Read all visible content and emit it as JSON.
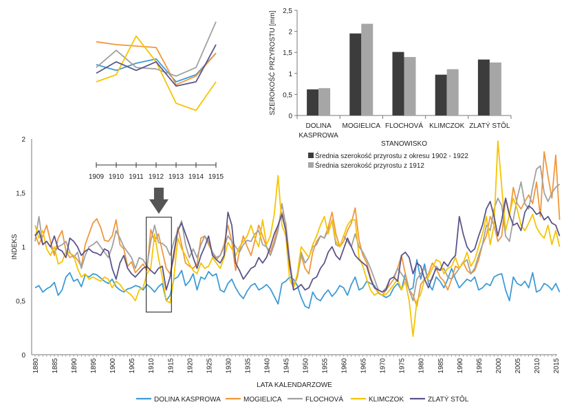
{
  "colors": {
    "dolina": "#3d9ad6",
    "mogielica": "#f0973a",
    "flochova": "#a0a0a0",
    "klimczok": "#f5c400",
    "zlaty": "#5a5488",
    "bar_dark": "#3c3c3c",
    "bar_light": "#a6a6a6",
    "arrow": "#555555"
  },
  "chart_data": [
    {
      "id": "main",
      "type": "line",
      "xlabel": "LATA KALENDARZOWE",
      "ylabel": "INDEKS",
      "xlim": [
        1880,
        2015
      ],
      "ylim": [
        0,
        2
      ],
      "yticks": [
        0,
        0.5,
        1,
        1.5,
        2
      ],
      "ytick_labels": [
        "0",
        "0,5",
        "1",
        "1,5",
        "2"
      ],
      "xticks": [
        1880,
        1885,
        1890,
        1895,
        1900,
        1905,
        1910,
        1915,
        1920,
        1925,
        1930,
        1935,
        1940,
        1945,
        1950,
        1955,
        1960,
        1965,
        1970,
        1975,
        1980,
        1985,
        1990,
        1995,
        2000,
        2005,
        2010,
        2015
      ],
      "highlight_range": [
        1909,
        1915
      ],
      "series": [
        {
          "name": "DOLINA KASPROWA",
          "color_key": "dolina",
          "x_start": 1880,
          "values": [
            0.62,
            0.64,
            0.58,
            0.61,
            0.63,
            0.67,
            0.55,
            0.6,
            0.72,
            0.76,
            0.68,
            0.7,
            0.63,
            0.74,
            0.72,
            0.75,
            0.74,
            0.71,
            0.68,
            0.66,
            0.7,
            0.63,
            0.6,
            0.58,
            0.61,
            0.62,
            0.64,
            0.63,
            0.6,
            0.65,
            0.62,
            0.58,
            0.63,
            0.66,
            0.5,
            0.55,
            0.7,
            0.72,
            0.78,
            0.64,
            0.68,
            0.75,
            0.6,
            0.72,
            0.7,
            0.77,
            0.73,
            0.75,
            0.6,
            0.58,
            0.66,
            0.7,
            0.62,
            0.56,
            0.52,
            0.59,
            0.64,
            0.66,
            0.6,
            0.62,
            0.65,
            0.61,
            0.54,
            0.47,
            0.66,
            0.68,
            0.72,
            0.7,
            0.64,
            0.53,
            0.45,
            0.43,
            0.58,
            0.52,
            0.5,
            0.56,
            0.6,
            0.54,
            0.58,
            0.64,
            0.62,
            0.55,
            0.65,
            0.72,
            0.6,
            0.62,
            0.68,
            0.66,
            0.64,
            0.57,
            0.55,
            0.53,
            0.55,
            0.62,
            0.66,
            0.6,
            0.75,
            0.6,
            0.62,
            0.88,
            0.7,
            0.84,
            0.66,
            0.6,
            0.72,
            0.68,
            0.62,
            0.7,
            0.8,
            0.7,
            0.62,
            0.66,
            0.7,
            0.68,
            0.72,
            0.6,
            0.62,
            0.66,
            0.64,
            0.72,
            0.74,
            0.75,
            0.6,
            0.5,
            0.72,
            0.66,
            0.64,
            0.68,
            0.62,
            0.76,
            0.58,
            0.6,
            0.66,
            0.64,
            0.6,
            0.66,
            0.58
          ]
        },
        {
          "name": "MOGIELICA",
          "color_key": "mogielica",
          "x_start": 1880,
          "values": [
            1.12,
            1.02,
            1.1,
            1.2,
            1.05,
            0.92,
            1.08,
            1.15,
            0.96,
            0.9,
            0.92,
            0.88,
            0.82,
            1.02,
            1.12,
            1.22,
            1.26,
            1.18,
            1.06,
            1.05,
            1.1,
            1.25,
            1.02,
            0.98,
            0.82,
            0.86,
            0.76,
            0.8,
            0.84,
            0.78,
            1.16,
            1.05,
            1.12,
            0.96,
            0.8,
            0.75,
            0.9,
            1.18,
            1.02,
            0.85,
            0.82,
            0.8,
            0.84,
            1.08,
            1.1,
            1.02,
            0.95,
            0.88,
            0.92,
            1.02,
            1.2,
            1.05,
            0.78,
            0.96,
            1.1,
            1.0,
            0.92,
            1.06,
            1.2,
            1.1,
            1.0,
            0.95,
            1.06,
            1.2,
            1.32,
            1.22,
            0.88,
            0.62,
            0.72,
            0.92,
            0.8,
            0.75,
            0.95,
            1.05,
            1.1,
            1.08,
            1.18,
            1.32,
            1.12,
            1.0,
            1.05,
            1.15,
            1.22,
            1.36,
            1.06,
            0.92,
            0.85,
            0.72,
            0.62,
            0.58,
            0.55,
            0.6,
            0.65,
            0.7,
            0.8,
            0.92,
            0.75,
            0.6,
            0.55,
            0.45,
            0.65,
            0.7,
            0.75,
            0.85,
            0.8,
            0.72,
            0.68,
            0.6,
            0.7,
            0.82,
            0.8,
            0.86,
            0.78,
            0.75,
            0.78,
            0.88,
            1.02,
            1.1,
            1.28,
            1.2,
            1.05,
            1.1,
            1.45,
            1.28,
            1.55,
            1.4,
            1.35,
            1.42,
            1.48,
            1.4,
            1.6,
            1.28,
            1.88,
            1.65,
            1.45,
            1.85,
            1.25
          ]
        },
        {
          "name": "FLOCHOVÁ",
          "color_key": "flochova",
          "x_start": 1880,
          "values": [
            1.05,
            1.28,
            1.02,
            1.05,
            1.0,
            0.95,
            1.0,
            1.02,
            1.05,
            0.95,
            0.9,
            0.95,
            0.8,
            0.92,
            1.0,
            1.02,
            1.05,
            1.0,
            0.95,
            0.9,
            1.0,
            1.15,
            1.08,
            1.0,
            0.95,
            0.9,
            0.8,
            0.9,
            0.88,
            0.82,
            1.05,
            1.2,
            1.04,
            1.03,
            1.0,
            0.92,
            1.05,
            1.15,
            1.24,
            1.02,
            0.9,
            0.98,
            0.9,
            1.02,
            1.1,
            1.05,
            0.95,
            0.9,
            0.92,
            1.0,
            1.1,
            1.05,
            1.0,
            0.95,
            1.02,
            1.06,
            1.05,
            1.12,
            1.15,
            1.02,
            1.0,
            0.92,
            1.02,
            1.15,
            1.4,
            1.2,
            0.82,
            0.65,
            0.72,
            0.95,
            0.85,
            0.9,
            1.0,
            1.02,
            1.1,
            1.08,
            1.15,
            1.24,
            1.02,
            1.0,
            1.1,
            1.05,
            1.0,
            1.12,
            1.0,
            0.95,
            0.88,
            0.8,
            0.7,
            0.6,
            0.58,
            0.62,
            0.7,
            0.72,
            0.8,
            0.75,
            0.7,
            0.6,
            0.5,
            0.7,
            0.75,
            0.8,
            0.68,
            0.7,
            0.82,
            0.78,
            0.8,
            0.72,
            0.7,
            0.75,
            0.8,
            0.85,
            0.88,
            0.75,
            0.8,
            0.92,
            1.02,
            1.2,
            1.15,
            1.35,
            1.45,
            1.38,
            1.1,
            1.05,
            1.25,
            1.45,
            1.6,
            1.4,
            1.35,
            1.55,
            1.72,
            1.75,
            1.5,
            1.42,
            1.5,
            1.55,
            1.58
          ]
        },
        {
          "name": "KLIMCZOK",
          "color_key": "klimczok",
          "x_start": 1880,
          "values": [
            1.2,
            1.08,
            1.15,
            0.98,
            0.92,
            1.0,
            0.84,
            0.86,
            0.96,
            0.94,
            0.92,
            0.8,
            0.72,
            0.75,
            0.7,
            0.72,
            0.7,
            0.68,
            0.72,
            0.7,
            0.62,
            0.68,
            0.65,
            0.6,
            0.58,
            0.55,
            0.5,
            0.6,
            0.62,
            0.75,
            0.8,
            1.12,
            0.9,
            0.72,
            0.5,
            0.48,
            0.72,
            1.08,
            0.98,
            0.92,
            0.84,
            0.78,
            0.75,
            0.85,
            0.8,
            0.82,
            0.9,
            0.85,
            0.8,
            0.9,
            1.04,
            0.98,
            0.92,
            1.0,
            1.05,
            1.1,
            1.2,
            1.08,
            1.0,
            1.25,
            1.02,
            1.1,
            1.3,
            1.66,
            1.2,
            1.1,
            0.7,
            0.62,
            0.75,
            1.0,
            0.95,
            0.9,
            1.02,
            1.1,
            1.2,
            1.28,
            1.12,
            1.25,
            1.05,
            1.0,
            1.1,
            1.2,
            1.25,
            1.25,
            0.9,
            0.82,
            0.7,
            0.6,
            0.55,
            0.58,
            0.55,
            0.56,
            0.6,
            0.65,
            0.7,
            0.6,
            0.68,
            0.5,
            0.17,
            0.5,
            0.56,
            0.7,
            0.72,
            0.8,
            0.88,
            0.86,
            0.75,
            0.8,
            0.82,
            0.9,
            0.8,
            0.85,
            0.95,
            0.82,
            0.88,
            1.0,
            1.12,
            1.28,
            1.02,
            1.2,
            1.98,
            1.55,
            1.15,
            1.3,
            1.45,
            1.35,
            1.2,
            1.15,
            1.22,
            1.3,
            1.18,
            1.12,
            1.08,
            1.2,
            1.02,
            1.15,
            1.0
          ]
        },
        {
          "name": "ZLATÝ STÔL",
          "color_key": "zlaty",
          "x_start": 1880,
          "values": [
            1.1,
            1.15,
            1.02,
            1.05,
            1.0,
            1.1,
            0.98,
            0.96,
            0.9,
            1.08,
            1.05,
            1.0,
            0.92,
            0.96,
            0.98,
            0.95,
            0.94,
            0.92,
            0.98,
            0.96,
            0.8,
            0.7,
            0.85,
            0.92,
            0.8,
            0.75,
            0.72,
            0.76,
            0.8,
            0.82,
            0.78,
            0.75,
            0.8,
            0.82,
            0.6,
            0.72,
            0.95,
            1.15,
            1.22,
            1.12,
            1.02,
            0.9,
            0.8,
            0.92,
            1.0,
            1.1,
            0.92,
            0.88,
            0.85,
            0.92,
            1.32,
            1.2,
            0.85,
            0.78,
            0.7,
            0.75,
            0.8,
            0.82,
            0.9,
            0.85,
            0.9,
            1.0,
            1.12,
            1.2,
            1.3,
            1.15,
            0.84,
            0.6,
            0.62,
            0.65,
            0.6,
            0.62,
            0.7,
            0.72,
            0.8,
            0.85,
            0.95,
            1.0,
            0.92,
            0.88,
            0.98,
            1.08,
            1.0,
            0.92,
            0.88,
            0.85,
            0.82,
            0.7,
            0.62,
            0.6,
            0.58,
            0.6,
            0.7,
            0.72,
            0.68,
            0.92,
            0.95,
            0.9,
            0.75,
            0.85,
            0.82,
            0.7,
            0.62,
            0.72,
            0.8,
            0.78,
            0.86,
            0.82,
            0.88,
            0.92,
            1.28,
            1.12,
            1.0,
            0.95,
            0.98,
            1.1,
            1.2,
            1.35,
            1.42,
            1.28,
            1.1,
            1.25,
            1.45,
            1.3,
            1.2,
            1.22,
            1.15,
            1.32,
            1.38,
            1.35,
            1.3,
            1.32,
            1.25,
            1.28,
            1.22,
            1.2,
            1.1
          ]
        }
      ]
    },
    {
      "id": "inset",
      "type": "line",
      "x": [
        1909,
        1910,
        1911,
        1912,
        1913,
        1914,
        1915
      ],
      "xtick_labels": [
        "1909",
        "1910",
        "1911",
        "1912",
        "1913",
        "1914",
        "1915"
      ],
      "note": "zoom of 1909-1915 period",
      "series": [
        {
          "name": "DOLINA KASPROWA",
          "color_key": "dolina",
          "values": [
            0.62,
            0.58,
            0.63,
            0.66,
            0.5,
            0.55,
            0.7
          ]
        },
        {
          "name": "MOGIELICA",
          "color_key": "mogielica",
          "values": [
            0.78,
            0.76,
            0.75,
            0.74,
            0.48,
            0.54,
            0.7
          ]
        },
        {
          "name": "FLOCHOVÁ",
          "color_key": "flochova",
          "values": [
            0.6,
            0.72,
            0.6,
            0.59,
            0.54,
            0.6,
            0.92
          ]
        },
        {
          "name": "KLIMCZOK",
          "color_key": "klimczok",
          "values": [
            0.5,
            0.55,
            0.82,
            0.64,
            0.35,
            0.3,
            0.5
          ]
        },
        {
          "name": "ZLATÝ STÔL",
          "color_key": "zlaty",
          "values": [
            0.56,
            0.64,
            0.58,
            0.64,
            0.47,
            0.5,
            0.76
          ]
        }
      ]
    },
    {
      "id": "bars",
      "type": "bar",
      "xlabel": "STANOWISKO",
      "ylabel": "SZEROKOŚĆ PRZYROSTU [mm]",
      "ylim": [
        0,
        2.5
      ],
      "yticks": [
        0,
        0.5,
        1,
        1.5,
        2,
        2.5
      ],
      "ytick_labels": [
        "0",
        "0,5",
        "1",
        "1,5",
        "2",
        "2,5"
      ],
      "categories": [
        [
          "DOLINA",
          "KASPROWA"
        ],
        [
          "MOGIELICA"
        ],
        [
          "FLOCHOVÁ"
        ],
        [
          "KLIMCZOK"
        ],
        [
          "ZLATÝ STÔL"
        ]
      ],
      "series": [
        {
          "name": "Średnia szerokość przyrostu z okresu 1902 - 1922",
          "color_key": "bar_dark",
          "values": [
            0.62,
            1.95,
            1.51,
            0.97,
            1.33
          ]
        },
        {
          "name": "Średnia szerokość przyrostu z 1912",
          "color_key": "bar_light",
          "values": [
            0.65,
            2.18,
            1.39,
            1.1,
            1.26
          ]
        }
      ]
    }
  ]
}
